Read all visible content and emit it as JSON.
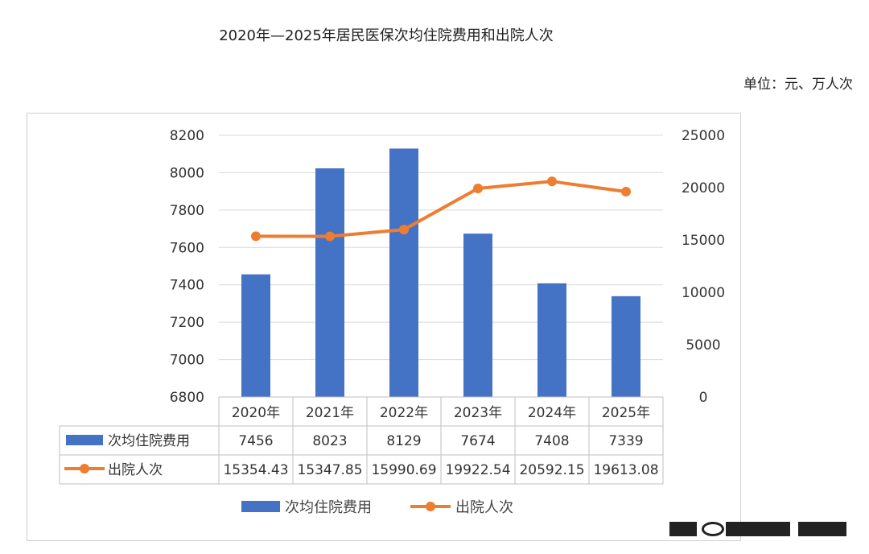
{
  "title": "2020年—2025年居民医保次均住院费用和出院人次",
  "unit_label": "单位：元、万人次",
  "colors": {
    "bar": "#4472C4",
    "line": "#ED7D31",
    "grid": "#D9D9D9",
    "table_border": "#BFBFBF"
  },
  "chart_data": {
    "type": "bar",
    "categories": [
      "2020年",
      "2021年",
      "2022年",
      "2023年",
      "2024年",
      "2025年"
    ],
    "series": [
      {
        "name": "次均住院费用",
        "type": "bar",
        "axis": "left",
        "values": [
          7456,
          8023,
          8129,
          7674,
          7408,
          7339
        ],
        "labels": [
          "7456",
          "8023",
          "8129",
          "7674",
          "7408",
          "7339"
        ]
      },
      {
        "name": "出院人次",
        "type": "line",
        "axis": "right",
        "values": [
          15354.43,
          15347.85,
          15990.69,
          19922.54,
          20592.15,
          19613.08
        ],
        "labels": [
          "15354.43",
          "15347.85",
          "15990.69",
          "19922.54",
          "20592.15",
          "19613.08"
        ]
      }
    ],
    "y_left": {
      "min": 6800,
      "max": 8200,
      "step": 200,
      "ticks": [
        "6800",
        "7000",
        "7200",
        "7400",
        "7600",
        "7800",
        "8000",
        "8200"
      ]
    },
    "y_right": {
      "min": 0,
      "max": 25000,
      "step": 5000,
      "ticks": [
        "0",
        "5000",
        "10000",
        "15000",
        "20000",
        "25000"
      ]
    },
    "grid": true,
    "data_table": true,
    "legend_position": "bottom"
  }
}
